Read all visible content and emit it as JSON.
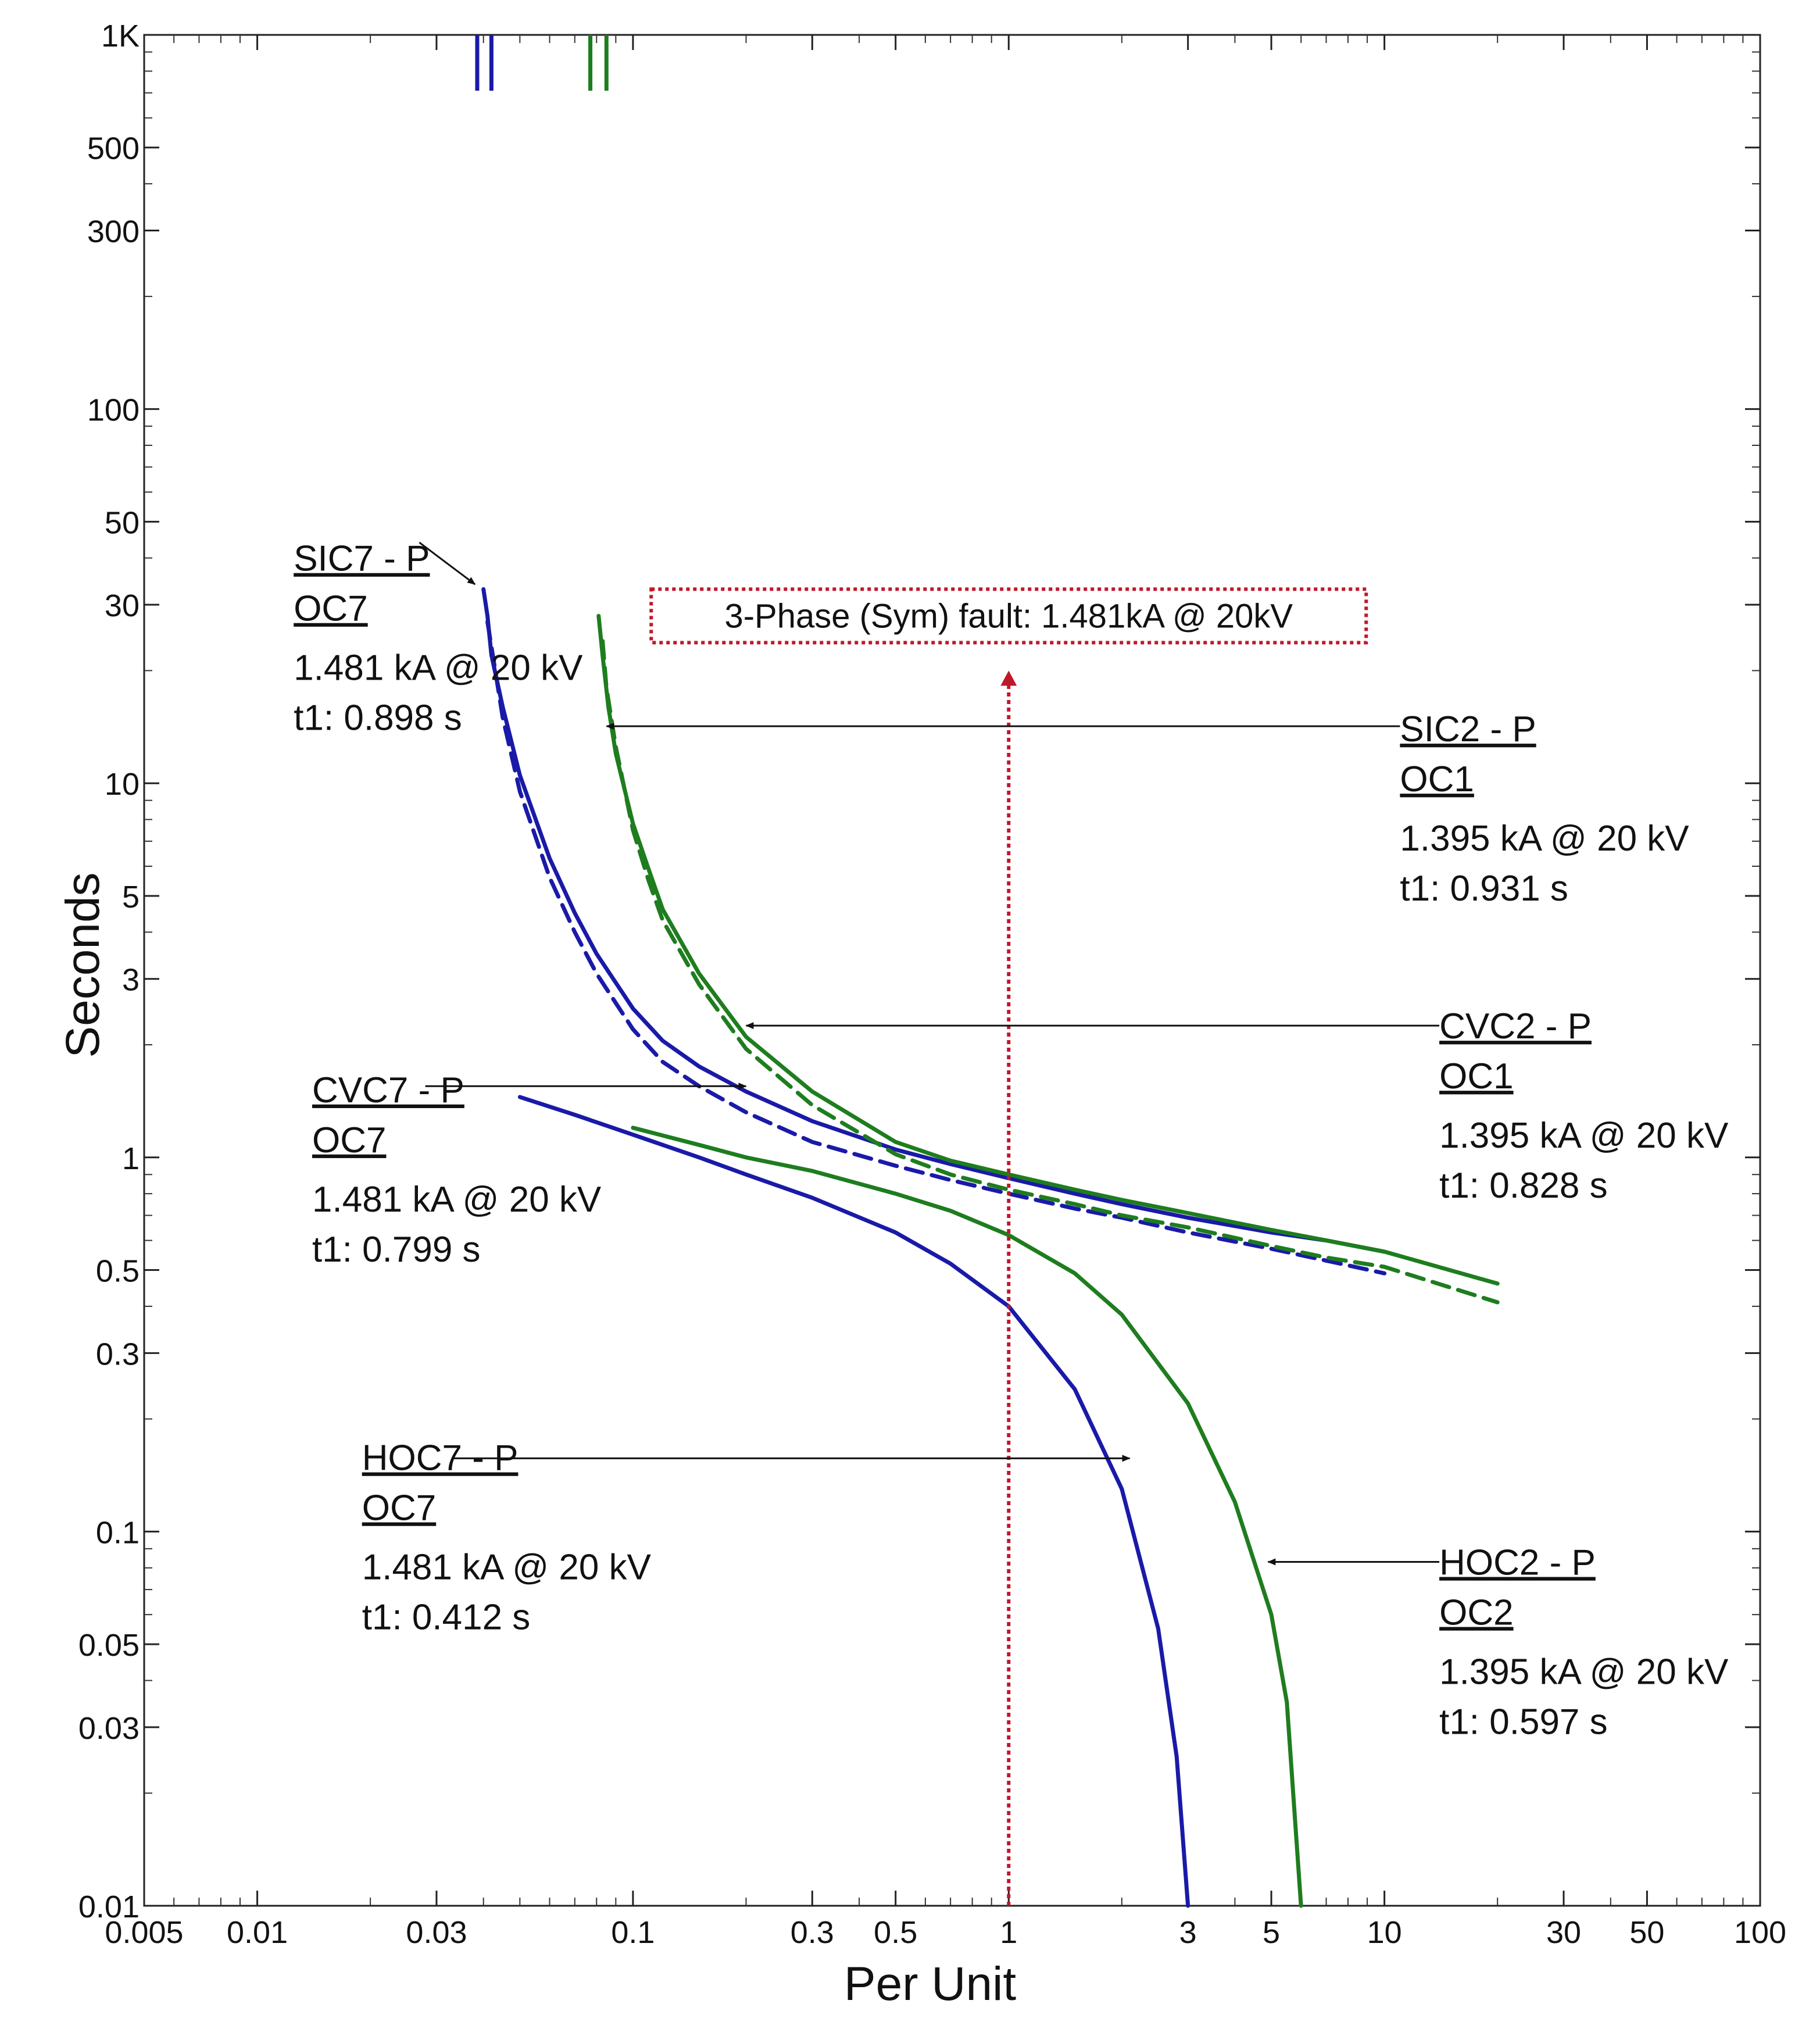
{
  "chart_data": {
    "type": "line",
    "title": "",
    "xlabel": "Per Unit",
    "ylabel": "Seconds",
    "x_scale": "log",
    "y_scale": "log",
    "xlim": [
      0.005,
      100
    ],
    "ylim": [
      0.01,
      1000
    ],
    "grid": false,
    "x_ticks": [
      {
        "value": 0.005,
        "label": "0.005"
      },
      {
        "value": 0.01,
        "label": "0.01"
      },
      {
        "value": 0.03,
        "label": "0.03"
      },
      {
        "value": 0.1,
        "label": "0.1"
      },
      {
        "value": 0.3,
        "label": "0.3"
      },
      {
        "value": 0.5,
        "label": "0.5"
      },
      {
        "value": 1,
        "label": "1"
      },
      {
        "value": 3,
        "label": "3"
      },
      {
        "value": 5,
        "label": "5"
      },
      {
        "value": 10,
        "label": "10"
      },
      {
        "value": 30,
        "label": "30"
      },
      {
        "value": 50,
        "label": "50"
      },
      {
        "value": 100,
        "label": "100"
      }
    ],
    "y_ticks": [
      {
        "value": 0.01,
        "label": "0.01"
      },
      {
        "value": 0.03,
        "label": "0.03"
      },
      {
        "value": 0.05,
        "label": "0.05"
      },
      {
        "value": 0.1,
        "label": "0.1"
      },
      {
        "value": 0.3,
        "label": "0.3"
      },
      {
        "value": 0.5,
        "label": "0.5"
      },
      {
        "value": 1,
        "label": "1"
      },
      {
        "value": 3,
        "label": "3"
      },
      {
        "value": 5,
        "label": "5"
      },
      {
        "value": 10,
        "label": "10"
      },
      {
        "value": 30,
        "label": "30"
      },
      {
        "value": 50,
        "label": "50"
      },
      {
        "value": 100,
        "label": "100"
      },
      {
        "value": 300,
        "label": "300"
      },
      {
        "value": 500,
        "label": "500"
      },
      {
        "value": 1000,
        "label": "1K"
      }
    ],
    "top_markers": [
      {
        "x": 0.0385,
        "color": "#1a1aa8"
      },
      {
        "x": 0.042,
        "color": "#1a1aa8"
      },
      {
        "x": 0.077,
        "color": "#1e7d1e"
      },
      {
        "x": 0.085,
        "color": "#1e7d1e"
      }
    ],
    "series": [
      {
        "name": "SIC7 - P",
        "color": "#1a1aa8",
        "dash": false,
        "x": [
          0.04,
          0.041,
          0.042,
          0.045,
          0.05,
          0.06,
          0.07,
          0.08,
          0.1,
          0.12,
          0.15,
          0.2,
          0.3,
          0.5,
          0.7,
          1,
          1.5,
          2,
          3,
          5,
          7,
          10
        ],
        "y": [
          33,
          28,
          22,
          16,
          10.5,
          6.3,
          4.5,
          3.5,
          2.5,
          2.05,
          1.75,
          1.5,
          1.25,
          1.05,
          0.96,
          0.88,
          0.8,
          0.75,
          0.69,
          0.63,
          0.6,
          0.56
        ]
      },
      {
        "name": "SIC7 - P (dashed)",
        "color": "#1a1aa8",
        "dash": true,
        "x": [
          0.041,
          0.043,
          0.045,
          0.05,
          0.06,
          0.07,
          0.08,
          0.1,
          0.12,
          0.15,
          0.2,
          0.3,
          0.5,
          0.7,
          1,
          1.5,
          2,
          3,
          5,
          7,
          10
        ],
        "y": [
          27,
          20,
          15,
          9.5,
          5.6,
          4,
          3.1,
          2.2,
          1.8,
          1.55,
          1.32,
          1.1,
          0.95,
          0.87,
          0.8,
          0.73,
          0.69,
          0.63,
          0.57,
          0.53,
          0.49
        ]
      },
      {
        "name": "SIC2 - P",
        "color": "#1e7d1e",
        "dash": false,
        "x": [
          0.081,
          0.083,
          0.086,
          0.09,
          0.1,
          0.11,
          0.12,
          0.15,
          0.2,
          0.3,
          0.5,
          0.7,
          1,
          1.5,
          2,
          3,
          5,
          7,
          10,
          20
        ],
        "y": [
          28,
          22,
          16,
          12,
          7.8,
          5.9,
          4.6,
          3.1,
          2.1,
          1.5,
          1.1,
          0.98,
          0.9,
          0.82,
          0.77,
          0.71,
          0.64,
          0.6,
          0.56,
          0.46
        ]
      },
      {
        "name": "SIC2 - P (dashed)",
        "color": "#1e7d1e",
        "dash": true,
        "x": [
          0.083,
          0.085,
          0.09,
          0.1,
          0.11,
          0.12,
          0.15,
          0.2,
          0.3,
          0.5,
          0.7,
          1,
          1.5,
          2,
          3,
          5,
          7,
          10,
          20
        ],
        "y": [
          24,
          18,
          12.5,
          7.5,
          5.5,
          4.3,
          2.9,
          1.95,
          1.38,
          1.02,
          0.9,
          0.82,
          0.75,
          0.7,
          0.65,
          0.58,
          0.54,
          0.51,
          0.41
        ]
      },
      {
        "name": "HOC7 - P",
        "color": "#1a1aa8",
        "dash": false,
        "x": [
          0.05,
          0.07,
          0.1,
          0.15,
          0.2,
          0.3,
          0.5,
          0.7,
          1,
          1.5,
          2,
          2.5,
          2.8,
          3
        ],
        "y": [
          1.45,
          1.3,
          1.15,
          1.0,
          0.9,
          0.78,
          0.63,
          0.52,
          0.4,
          0.24,
          0.13,
          0.055,
          0.025,
          0.01
        ]
      },
      {
        "name": "HOC2 - P",
        "color": "#1e7d1e",
        "dash": false,
        "x": [
          0.1,
          0.15,
          0.2,
          0.3,
          0.5,
          0.7,
          1,
          1.5,
          2,
          3,
          4,
          5,
          5.5,
          6
        ],
        "y": [
          1.2,
          1.08,
          1.0,
          0.92,
          0.8,
          0.72,
          0.62,
          0.49,
          0.38,
          0.22,
          0.12,
          0.06,
          0.035,
          0.01
        ]
      }
    ],
    "fault_line": {
      "x": 1,
      "y_from": 0.01,
      "y_to": 20,
      "color": "#c0182b"
    },
    "fault_box": {
      "text": "3-Phase  (Sym)   fault: 1.481kA @ 20kV",
      "x_center": 1.0,
      "y_center": 28
    },
    "annotations": [
      {
        "line1": "SIC7 - P",
        "line2": "OC7",
        "line3": "1.481 kA @ 20 kV",
        "line4": "t1: 0.898 s",
        "label_x": 0.0125,
        "label_y": 40,
        "arrow_from": [
          0.027,
          44
        ],
        "arrow_to": [
          0.038,
          34
        ]
      },
      {
        "line1": "SIC2 - P",
        "line2": "OC1",
        "line3": "1.395 kA @ 20 kV",
        "line4": "t1: 0.931 s",
        "label_x": 11,
        "label_y": 14,
        "arrow_from": [
          11,
          14.2
        ],
        "arrow_to": [
          0.085,
          14.2
        ]
      },
      {
        "line1": "CVC2 - P",
        "line2": "OC1",
        "line3": "1.395 kA @ 20 kV",
        "line4": "t1: 0.828 s",
        "label_x": 14,
        "label_y": 2.25,
        "arrow_from": [
          14,
          2.25
        ],
        "arrow_to": [
          0.2,
          2.25
        ]
      },
      {
        "line1": "CVC7 - P",
        "line2": "OC7",
        "line3": "1.481 kA @ 20 kV",
        "line4": "t1: 0.799 s",
        "label_x": 0.014,
        "label_y": 1.52,
        "arrow_from": [
          0.028,
          1.55
        ],
        "arrow_to": [
          0.2,
          1.55
        ]
      },
      {
        "line1": "HOC7 - P",
        "line2": "OC7",
        "line3": "1.481 kA @ 20 kV",
        "line4": "t1: 0.412 s",
        "label_x": 0.019,
        "label_y": 0.158,
        "arrow_from": [
          0.033,
          0.157
        ],
        "arrow_to": [
          2.1,
          0.157
        ]
      },
      {
        "line1": "HOC2 - P",
        "line2": "OC2",
        "line3": "1.395 kA @ 20 kV",
        "line4": "t1: 0.597 s",
        "label_x": 14,
        "label_y": 0.083,
        "arrow_from": [
          14,
          0.083
        ],
        "arrow_to": [
          4.9,
          0.083
        ]
      }
    ]
  }
}
